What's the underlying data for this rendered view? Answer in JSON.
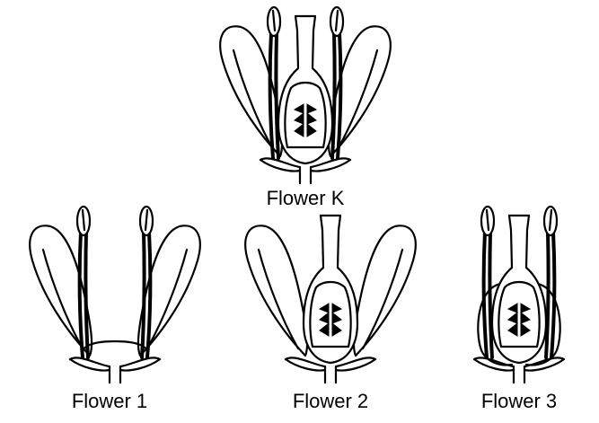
{
  "flowers": [
    {
      "id": "K",
      "label": "Flower K",
      "parts": {
        "petals": true,
        "stamens": true,
        "pistil": true
      }
    },
    {
      "id": "1",
      "label": "Flower 1",
      "parts": {
        "petals": true,
        "stamens": true,
        "pistil": false
      }
    },
    {
      "id": "2",
      "label": "Flower 2",
      "parts": {
        "petals": true,
        "stamens": false,
        "pistil": true
      }
    },
    {
      "id": "3",
      "label": "Flower 3",
      "parts": {
        "petals": false,
        "stamens": true,
        "pistil": true
      }
    }
  ]
}
